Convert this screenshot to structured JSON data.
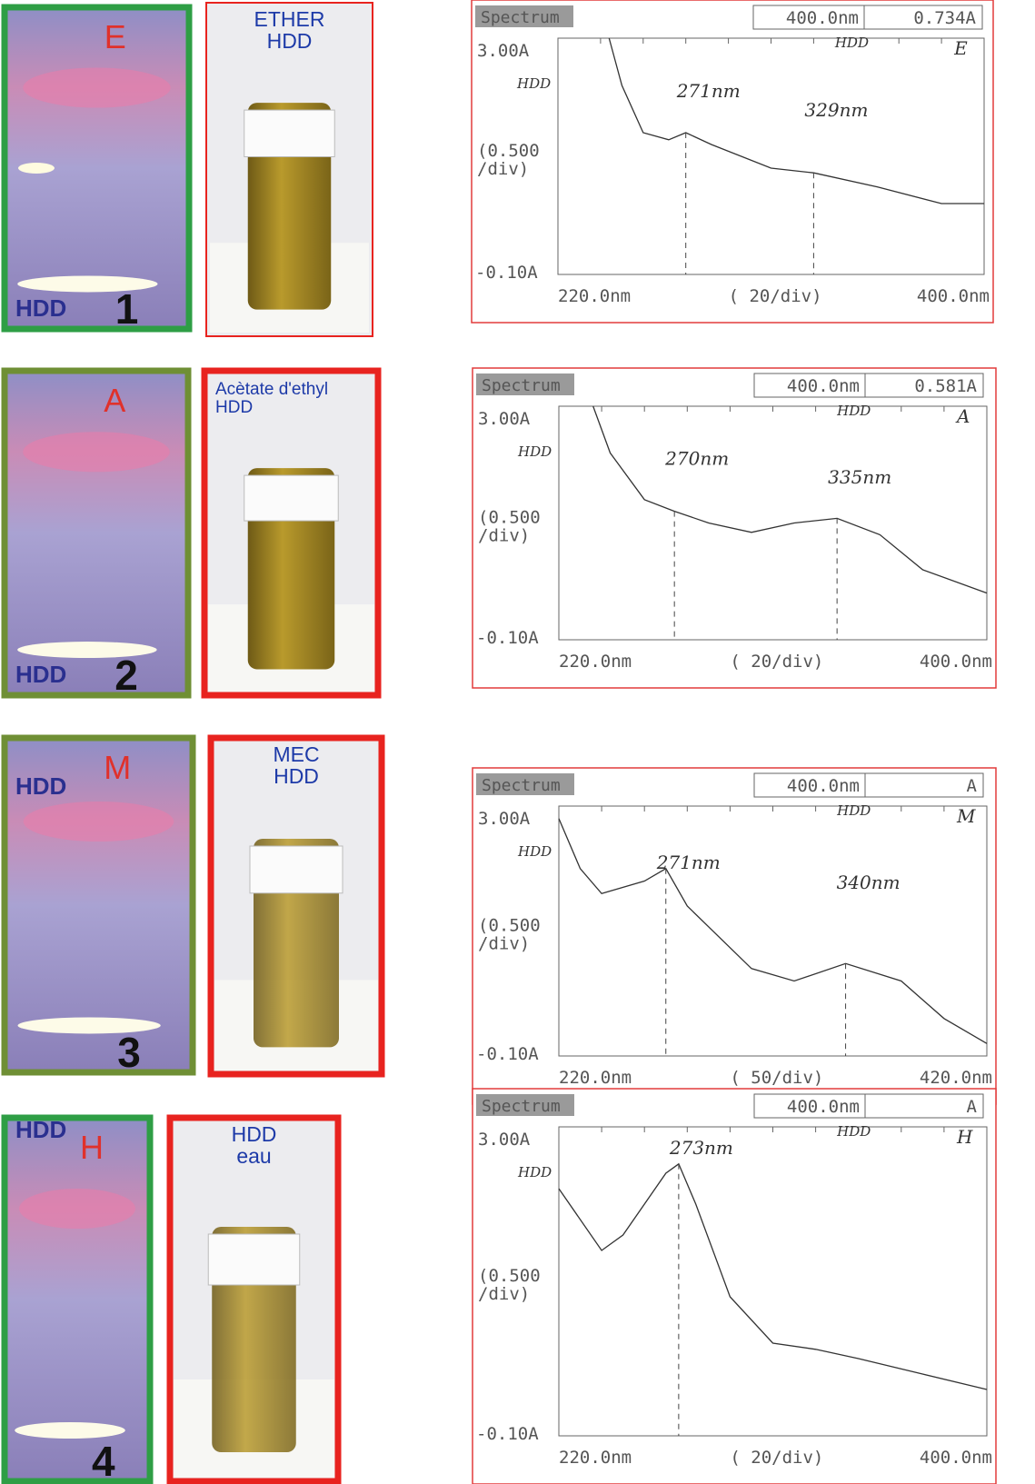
{
  "rows": [
    {
      "plate": {
        "letter": "E",
        "label": "HDD",
        "number": "1"
      },
      "vial": {
        "lines": [
          "ETHER",
          "HDD"
        ]
      },
      "spectrum": {
        "header": "Spectrum",
        "readout": [
          "400.0nm",
          "0.734A"
        ],
        "y_top": "3.00A",
        "y_mid": [
          "(0.500",
          "/div)"
        ],
        "y_bottom": "-0.10A",
        "x_left": "220.0nm",
        "x_mid": "( 20/div)",
        "x_right": "400.0nm",
        "y_note": "HDD",
        "top_note": "HDD",
        "corner": "E",
        "peaks": [
          "271nm",
          "329nm"
        ]
      }
    },
    {
      "plate": {
        "letter": "A",
        "label": "HDD",
        "number": "2"
      },
      "vial": {
        "lines": [
          "Acètate d'ethyl",
          "HDD"
        ]
      },
      "spectrum": {
        "header": "Spectrum",
        "readout": [
          "400.0nm",
          "0.581A"
        ],
        "y_top": "3.00A",
        "y_mid": [
          "(0.500",
          "/div)"
        ],
        "y_bottom": "-0.10A",
        "x_left": "220.0nm",
        "x_mid": "( 20/div)",
        "x_right": "400.0nm",
        "y_note": "HDD",
        "top_note": "HDD",
        "corner": "A",
        "peaks": [
          "270nm",
          "335nm"
        ]
      }
    },
    {
      "plate": {
        "letter": "M",
        "label": "HDD",
        "number": "3"
      },
      "vial": {
        "lines": [
          "MEC",
          "HDD"
        ]
      },
      "spectrum": {
        "header": "Spectrum",
        "readout": [
          "400.0nm",
          "A"
        ],
        "y_top": "3.00A",
        "y_mid": [
          "(0.500",
          "/div)"
        ],
        "y_bottom": "-0.10A",
        "x_left": "220.0nm",
        "x_mid": "( 50/div)",
        "x_right": "420.0nm",
        "y_note": "HDD",
        "top_note": "HDD",
        "corner": "M",
        "peaks": [
          "271nm",
          "340nm"
        ]
      }
    },
    {
      "plate": {
        "letter": "H",
        "label": "HDD",
        "number": "4"
      },
      "vial": {
        "lines": [
          "HDD",
          "eau"
        ]
      },
      "spectrum": {
        "header": "Spectrum",
        "readout": [
          "400.0nm",
          "A"
        ],
        "y_top": "3.00A",
        "y_mid": [
          "(0.500",
          "/div)"
        ],
        "y_bottom": "-0.10A",
        "x_left": "220.0nm",
        "x_mid": "( 20/div)",
        "x_right": "400.0nm",
        "y_note": "HDD",
        "top_note": "HDD",
        "corner": "H",
        "peaks": [
          "273nm"
        ]
      }
    }
  ]
}
